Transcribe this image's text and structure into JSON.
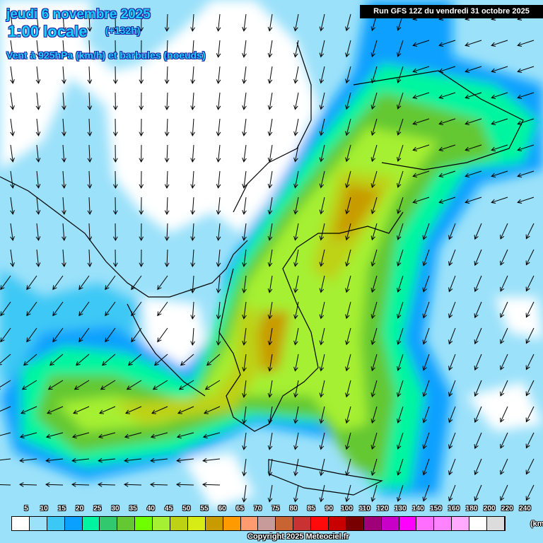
{
  "header": {
    "date": "jeudi 6 novembre 2025",
    "time": "1:00 locale",
    "lead": "(+132h)",
    "field": "Vent à 925hPa (km/h) et barbules (noeuds)",
    "run": "Run GFS 12Z du vendredi 31 octobre 2025"
  },
  "legend": {
    "labels": [
      "5",
      "10",
      "15",
      "20",
      "25",
      "30",
      "35",
      "40",
      "45",
      "50",
      "55",
      "60",
      "65",
      "70",
      "75",
      "80",
      "85",
      "90",
      "100",
      "110",
      "120",
      "130",
      "140",
      "150",
      "160",
      "180",
      "200",
      "220",
      "240"
    ],
    "colors": [
      "#ffffff",
      "#9be1fa",
      "#3cc8f5",
      "#0aa0ff",
      "#00f5a0",
      "#32c86e",
      "#64c832",
      "#6eff00",
      "#a5f032",
      "#bed214",
      "#d7ec14",
      "#c89b00",
      "#ff9b00",
      "#ff9b6e",
      "#c89b9b",
      "#c86432",
      "#c83232",
      "#ff0a0a",
      "#c80000",
      "#780000",
      "#a00078",
      "#c800c8",
      "#ff00ff",
      "#ff6eff",
      "#ff82ff",
      "#ffaaff",
      "#ffffff",
      "#dcdcdc",
      "#c8c8c8"
    ],
    "unit": "(km/h)"
  },
  "copyright": "Copyright 2025 Meteociel.fr"
}
